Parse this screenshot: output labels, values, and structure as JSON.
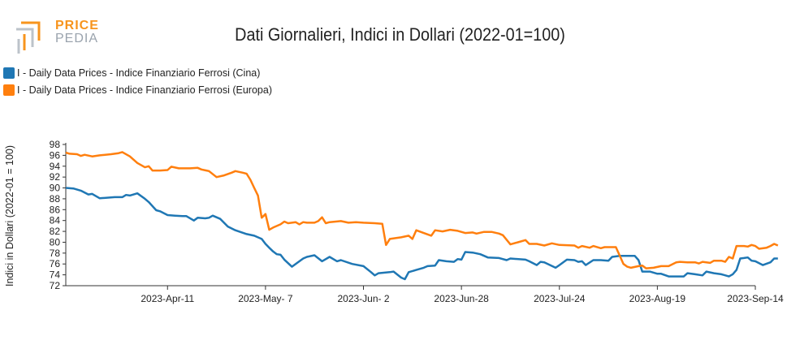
{
  "logo": {
    "line1": "PRICE",
    "line2": "PEDIA"
  },
  "chart_data": {
    "type": "line",
    "title": "Dati Giornalieri, Indici in Dollari (2022-01=100)",
    "xlabel": "",
    "ylabel": "Indici in Dollari (2022-01 = 100)",
    "ylim": [
      72,
      98
    ],
    "yticks": [
      72,
      74,
      76,
      78,
      80,
      82,
      84,
      86,
      88,
      90,
      92,
      94,
      96,
      98
    ],
    "x_range": [
      "2023-03-15",
      "2023-09-14"
    ],
    "xtick_dates": [
      "2023-04-11",
      "2023-05-07",
      "2023-06-02",
      "2023-06-28",
      "2023-07-24",
      "2023-08-19",
      "2023-09-14"
    ],
    "xtick_labels": [
      "2023-Apr-11",
      "2023-May- 7",
      "2023-Jun- 2",
      "2023-Jun-28",
      "2023-Jul-24",
      "2023-Aug-19",
      "2023-Sep-14"
    ],
    "legend_position": "top-left",
    "series": [
      {
        "name": "I - Daily Data Prices - Indice Finanziario Ferrosi (Cina)",
        "color": "#1f77b4",
        "points": [
          [
            "2023-03-15",
            90.0
          ],
          [
            "2023-03-17",
            89.9
          ],
          [
            "2023-03-19",
            89.5
          ],
          [
            "2023-03-21",
            88.8
          ],
          [
            "2023-03-22",
            88.9
          ],
          [
            "2023-03-24",
            88.1
          ],
          [
            "2023-03-28",
            88.3
          ],
          [
            "2023-03-30",
            88.3
          ],
          [
            "2023-03-31",
            88.7
          ],
          [
            "2023-04-01",
            88.6
          ],
          [
            "2023-04-03",
            89.0
          ],
          [
            "2023-04-05",
            88.0
          ],
          [
            "2023-04-06",
            87.4
          ],
          [
            "2023-04-08",
            85.9
          ],
          [
            "2023-04-09",
            85.7
          ],
          [
            "2023-04-11",
            85.0
          ],
          [
            "2023-04-13",
            84.9
          ],
          [
            "2023-04-15",
            84.8
          ],
          [
            "2023-04-16",
            84.8
          ],
          [
            "2023-04-18",
            84.0
          ],
          [
            "2023-04-19",
            84.5
          ],
          [
            "2023-04-21",
            84.4
          ],
          [
            "2023-04-22",
            84.5
          ],
          [
            "2023-04-23",
            84.9
          ],
          [
            "2023-04-25",
            84.3
          ],
          [
            "2023-04-27",
            82.9
          ],
          [
            "2023-04-29",
            82.2
          ],
          [
            "2023-05-02",
            81.5
          ],
          [
            "2023-05-04",
            81.2
          ],
          [
            "2023-05-06",
            80.6
          ],
          [
            "2023-05-07",
            79.7
          ],
          [
            "2023-05-08",
            79.0
          ],
          [
            "2023-05-09",
            78.3
          ],
          [
            "2023-05-10",
            77.8
          ],
          [
            "2023-05-11",
            77.7
          ],
          [
            "2023-05-12",
            76.8
          ],
          [
            "2023-05-14",
            75.5
          ],
          [
            "2023-05-17",
            77.0
          ],
          [
            "2023-05-18",
            77.3
          ],
          [
            "2023-05-20",
            77.6
          ],
          [
            "2023-05-22",
            76.5
          ],
          [
            "2023-05-24",
            77.3
          ],
          [
            "2023-05-26",
            76.5
          ],
          [
            "2023-05-27",
            76.7
          ],
          [
            "2023-05-30",
            76.0
          ],
          [
            "2023-06-02",
            75.6
          ],
          [
            "2023-06-04",
            74.5
          ],
          [
            "2023-06-05",
            73.9
          ],
          [
            "2023-06-06",
            74.3
          ],
          [
            "2023-06-09",
            74.5
          ],
          [
            "2023-06-10",
            74.6
          ],
          [
            "2023-06-12",
            73.5
          ],
          [
            "2023-06-13",
            73.2
          ],
          [
            "2023-06-14",
            74.5
          ],
          [
            "2023-06-16",
            74.9
          ],
          [
            "2023-06-18",
            75.3
          ],
          [
            "2023-06-19",
            75.6
          ],
          [
            "2023-06-21",
            75.7
          ],
          [
            "2023-06-22",
            76.7
          ],
          [
            "2023-06-24",
            76.5
          ],
          [
            "2023-06-26",
            76.4
          ],
          [
            "2023-06-27",
            76.9
          ],
          [
            "2023-06-28",
            76.8
          ],
          [
            "2023-06-29",
            78.2
          ],
          [
            "2023-07-01",
            78.1
          ],
          [
            "2023-07-03",
            77.8
          ],
          [
            "2023-07-04",
            77.5
          ],
          [
            "2023-07-05",
            77.2
          ],
          [
            "2023-07-08",
            77.1
          ],
          [
            "2023-07-10",
            76.7
          ],
          [
            "2023-07-11",
            77.0
          ],
          [
            "2023-07-15",
            76.8
          ],
          [
            "2023-07-16",
            76.5
          ],
          [
            "2023-07-18",
            75.8
          ],
          [
            "2023-07-19",
            76.4
          ],
          [
            "2023-07-20",
            76.3
          ],
          [
            "2023-07-23",
            75.3
          ],
          [
            "2023-07-24",
            75.8
          ],
          [
            "2023-07-26",
            76.8
          ],
          [
            "2023-07-28",
            76.7
          ],
          [
            "2023-07-29",
            76.4
          ],
          [
            "2023-07-30",
            76.5
          ],
          [
            "2023-07-31",
            75.8
          ],
          [
            "2023-08-02",
            76.7
          ],
          [
            "2023-08-04",
            76.7
          ],
          [
            "2023-08-06",
            76.6
          ],
          [
            "2023-08-07",
            77.3
          ],
          [
            "2023-08-09",
            77.5
          ],
          [
            "2023-08-11",
            77.5
          ],
          [
            "2023-08-13",
            77.5
          ],
          [
            "2023-08-14",
            76.7
          ],
          [
            "2023-08-15",
            74.6
          ],
          [
            "2023-08-17",
            74.6
          ],
          [
            "2023-08-19",
            74.2
          ],
          [
            "2023-08-20",
            74.2
          ],
          [
            "2023-08-22",
            73.7
          ],
          [
            "2023-08-26",
            73.7
          ],
          [
            "2023-08-27",
            74.3
          ],
          [
            "2023-08-29",
            74.1
          ],
          [
            "2023-08-31",
            73.9
          ],
          [
            "2023-09-01",
            74.6
          ],
          [
            "2023-09-03",
            74.3
          ],
          [
            "2023-09-05",
            74.1
          ],
          [
            "2023-09-07",
            73.7
          ],
          [
            "2023-09-08",
            74.1
          ],
          [
            "2023-09-09",
            74.9
          ],
          [
            "2023-09-10",
            77.0
          ],
          [
            "2023-09-11",
            77.1
          ],
          [
            "2023-09-12",
            77.2
          ],
          [
            "2023-09-13",
            76.6
          ],
          [
            "2023-09-14",
            76.5
          ],
          [
            "2023-09-16",
            75.8
          ],
          [
            "2023-09-18",
            76.3
          ],
          [
            "2023-09-19",
            77.0
          ],
          [
            "2023-09-20",
            77.0
          ]
        ]
      },
      {
        "name": "I - Daily Data Prices - Indice Finanziario Ferrosi (Europa)",
        "color": "#ff7f0e",
        "points": [
          [
            "2023-03-15",
            96.5
          ],
          [
            "2023-03-16",
            96.3
          ],
          [
            "2023-03-18",
            96.2
          ],
          [
            "2023-03-19",
            95.9
          ],
          [
            "2023-03-20",
            96.1
          ],
          [
            "2023-03-22",
            95.8
          ],
          [
            "2023-03-24",
            96.0
          ],
          [
            "2023-03-27",
            96.2
          ],
          [
            "2023-03-29",
            96.4
          ],
          [
            "2023-03-30",
            96.6
          ],
          [
            "2023-04-01",
            95.8
          ],
          [
            "2023-04-03",
            94.6
          ],
          [
            "2023-04-05",
            93.8
          ],
          [
            "2023-04-06",
            94.0
          ],
          [
            "2023-04-07",
            93.2
          ],
          [
            "2023-04-09",
            93.2
          ],
          [
            "2023-04-11",
            93.3
          ],
          [
            "2023-04-12",
            93.9
          ],
          [
            "2023-04-14",
            93.6
          ],
          [
            "2023-04-15",
            93.6
          ],
          [
            "2023-04-17",
            93.6
          ],
          [
            "2023-04-19",
            93.7
          ],
          [
            "2023-04-20",
            93.4
          ],
          [
            "2023-04-22",
            93.1
          ],
          [
            "2023-04-24",
            92.0
          ],
          [
            "2023-04-26",
            92.3
          ],
          [
            "2023-04-28",
            92.8
          ],
          [
            "2023-04-29",
            93.1
          ],
          [
            "2023-05-01",
            92.8
          ],
          [
            "2023-05-02",
            92.6
          ],
          [
            "2023-05-03",
            91.5
          ],
          [
            "2023-05-04",
            90.0
          ],
          [
            "2023-05-05",
            88.6
          ],
          [
            "2023-05-06",
            84.5
          ],
          [
            "2023-05-07",
            85.2
          ],
          [
            "2023-05-08",
            82.3
          ],
          [
            "2023-05-09",
            82.7
          ],
          [
            "2023-05-11",
            83.3
          ],
          [
            "2023-05-12",
            83.8
          ],
          [
            "2023-05-13",
            83.5
          ],
          [
            "2023-05-15",
            83.7
          ],
          [
            "2023-05-16",
            83.3
          ],
          [
            "2023-05-17",
            83.7
          ],
          [
            "2023-05-18",
            83.6
          ],
          [
            "2023-05-20",
            83.6
          ],
          [
            "2023-05-21",
            83.9
          ],
          [
            "2023-05-22",
            84.6
          ],
          [
            "2023-05-23",
            83.5
          ],
          [
            "2023-05-24",
            83.7
          ],
          [
            "2023-05-27",
            83.9
          ],
          [
            "2023-05-29",
            83.6
          ],
          [
            "2023-05-31",
            83.7
          ],
          [
            "2023-06-02",
            83.6
          ],
          [
            "2023-06-05",
            83.5
          ],
          [
            "2023-06-07",
            83.4
          ],
          [
            "2023-06-08",
            79.5
          ],
          [
            "2023-06-09",
            80.6
          ],
          [
            "2023-06-12",
            80.9
          ],
          [
            "2023-06-14",
            81.2
          ],
          [
            "2023-06-15",
            80.6
          ],
          [
            "2023-06-16",
            82.2
          ],
          [
            "2023-06-18",
            81.7
          ],
          [
            "2023-06-20",
            81.2
          ],
          [
            "2023-06-21",
            82.2
          ],
          [
            "2023-06-23",
            82.0
          ],
          [
            "2023-06-25",
            82.3
          ],
          [
            "2023-06-27",
            82.1
          ],
          [
            "2023-06-29",
            81.7
          ],
          [
            "2023-07-01",
            81.8
          ],
          [
            "2023-07-02",
            81.6
          ],
          [
            "2023-07-04",
            81.9
          ],
          [
            "2023-07-06",
            81.9
          ],
          [
            "2023-07-08",
            81.6
          ],
          [
            "2023-07-09",
            81.3
          ],
          [
            "2023-07-11",
            79.6
          ],
          [
            "2023-07-13",
            80.0
          ],
          [
            "2023-07-15",
            80.4
          ],
          [
            "2023-07-16",
            79.7
          ],
          [
            "2023-07-18",
            79.7
          ],
          [
            "2023-07-20",
            79.4
          ],
          [
            "2023-07-22",
            79.8
          ],
          [
            "2023-07-24",
            79.5
          ],
          [
            "2023-07-28",
            79.4
          ],
          [
            "2023-07-29",
            79.0
          ],
          [
            "2023-07-30",
            79.3
          ],
          [
            "2023-08-01",
            79.0
          ],
          [
            "2023-08-02",
            79.3
          ],
          [
            "2023-08-04",
            78.9
          ],
          [
            "2023-08-05",
            79.1
          ],
          [
            "2023-08-08",
            79.1
          ],
          [
            "2023-08-10",
            76.0
          ],
          [
            "2023-08-11",
            75.5
          ],
          [
            "2023-08-12",
            75.3
          ],
          [
            "2023-08-14",
            75.6
          ],
          [
            "2023-08-15",
            75.7
          ],
          [
            "2023-08-16",
            75.2
          ],
          [
            "2023-08-18",
            75.3
          ],
          [
            "2023-08-20",
            75.6
          ],
          [
            "2023-08-22",
            75.6
          ],
          [
            "2023-08-24",
            76.3
          ],
          [
            "2023-08-25",
            76.4
          ],
          [
            "2023-08-27",
            76.3
          ],
          [
            "2023-08-29",
            76.3
          ],
          [
            "2023-08-30",
            76.1
          ],
          [
            "2023-08-31",
            76.4
          ],
          [
            "2023-09-02",
            76.2
          ],
          [
            "2023-09-03",
            76.6
          ],
          [
            "2023-09-05",
            76.6
          ],
          [
            "2023-09-06",
            76.4
          ],
          [
            "2023-09-07",
            77.3
          ],
          [
            "2023-09-08",
            77.0
          ],
          [
            "2023-09-09",
            79.3
          ],
          [
            "2023-09-11",
            79.3
          ],
          [
            "2023-09-12",
            79.2
          ],
          [
            "2023-09-13",
            79.5
          ],
          [
            "2023-09-14",
            79.3
          ],
          [
            "2023-09-15",
            78.8
          ],
          [
            "2023-09-17",
            79.0
          ],
          [
            "2023-09-18",
            79.3
          ],
          [
            "2023-09-19",
            79.7
          ],
          [
            "2023-09-20",
            79.4
          ]
        ]
      }
    ]
  }
}
